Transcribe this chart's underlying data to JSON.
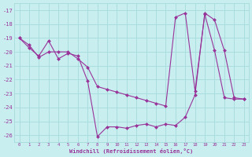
{
  "line1_x": [
    0,
    1,
    2,
    3,
    4,
    5,
    6,
    7,
    8,
    9,
    10,
    11,
    12,
    13,
    14,
    15,
    16,
    17,
    18,
    19,
    20,
    21,
    22,
    23
  ],
  "line1_y": [
    -19.0,
    -19.5,
    -20.4,
    -20.0,
    -20.0,
    -20.0,
    -20.5,
    -21.1,
    -22.5,
    -22.7,
    -22.9,
    -23.1,
    -23.3,
    -23.5,
    -23.7,
    -23.9,
    -17.5,
    -17.2,
    -22.8,
    -17.3,
    -19.9,
    -23.3,
    -23.4,
    -23.4
  ],
  "line2_x": [
    0,
    1,
    2,
    3,
    4,
    5,
    6,
    7,
    8,
    9,
    10,
    11,
    12,
    13,
    14,
    15,
    16,
    17,
    18,
    19,
    20,
    21,
    22,
    23
  ],
  "line2_y": [
    -19.0,
    -19.7,
    -20.3,
    -19.2,
    -20.5,
    -20.1,
    -20.3,
    -22.1,
    -26.1,
    -25.4,
    -25.4,
    -25.5,
    -25.3,
    -25.2,
    -25.4,
    -25.2,
    -25.3,
    -24.7,
    -23.1,
    -17.2,
    -17.7,
    -19.9,
    -23.3,
    -23.4
  ],
  "color": "#993399",
  "bg_color": "#c8eef0",
  "grid_color": "#aadddd",
  "xlabel": "Windchill (Refroidissement éolien,°C)",
  "ylim": [
    -26.5,
    -16.5
  ],
  "xlim": [
    -0.5,
    23.5
  ],
  "yticks": [
    -26,
    -25,
    -24,
    -23,
    -22,
    -21,
    -20,
    -19,
    -18,
    -17
  ],
  "xticks": [
    0,
    1,
    2,
    3,
    4,
    5,
    6,
    7,
    8,
    9,
    10,
    11,
    12,
    13,
    14,
    15,
    16,
    17,
    18,
    19,
    20,
    21,
    22,
    23
  ]
}
